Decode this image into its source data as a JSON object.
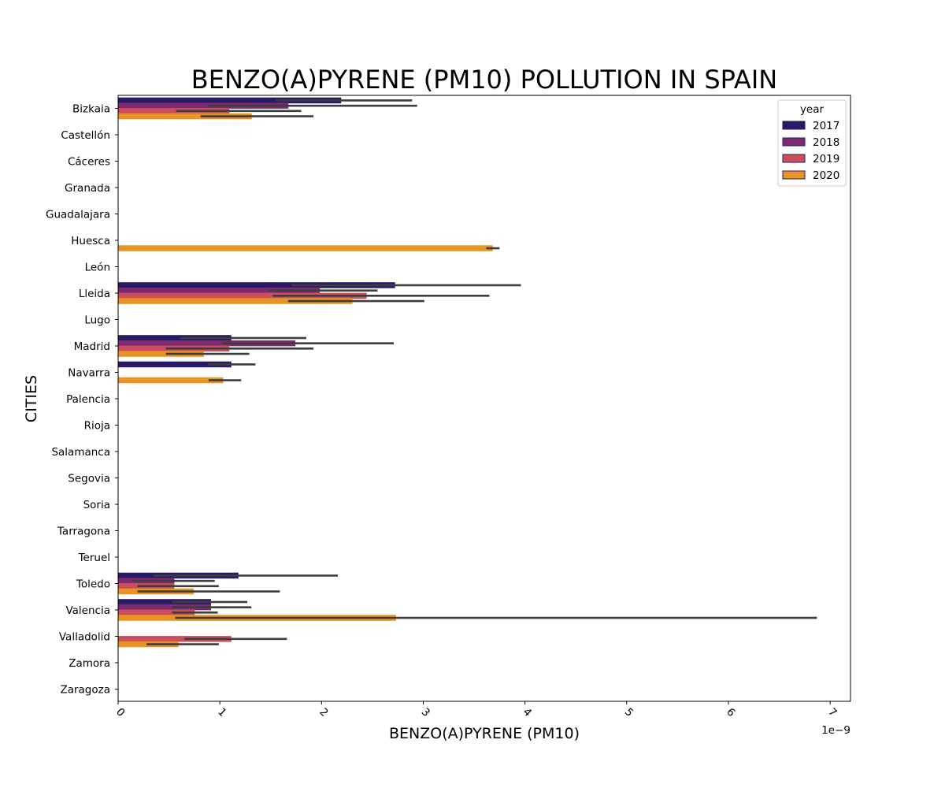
{
  "chart_data": {
    "type": "bar",
    "orientation": "horizontal",
    "title": "BENZO(A)PYRENE (PM10) POLLUTION IN SPAIN",
    "xlabel": "BENZO(A)PYRENE (PM10)",
    "ylabel": "CITIES",
    "x_offset_text": "1e−9",
    "xlim": [
      0,
      7.2
    ],
    "x_ticks": [
      0,
      1,
      2,
      3,
      4,
      5,
      6,
      7
    ],
    "x_tick_labels": [
      "0",
      "1",
      "2",
      "3",
      "4",
      "5",
      "6",
      "7"
    ],
    "grid": false,
    "legend": {
      "title": "year",
      "placement": "top-right"
    },
    "categories": [
      "Bizkaia",
      "Castellón",
      "Cáceres",
      "Granada",
      "Guadalajara",
      "Huesca",
      "León",
      "Lleida",
      "Lugo",
      "Madrid",
      "Navarra",
      "Palencia",
      "Rioja",
      "Salamanca",
      "Segovia",
      "Soria",
      "Tarragona",
      "Teruel",
      "Toledo",
      "Valencia",
      "Valladolid",
      "Zamora",
      "Zaragoza"
    ],
    "series": [
      {
        "name": "2017",
        "color": "#2a1a66",
        "values": [
          2.19,
          null,
          null,
          null,
          null,
          null,
          null,
          2.72,
          null,
          1.11,
          1.11,
          null,
          null,
          null,
          null,
          null,
          null,
          null,
          1.18,
          0.91,
          null,
          null,
          null
        ],
        "ci_low": [
          1.55,
          null,
          null,
          null,
          null,
          null,
          null,
          1.71,
          null,
          0.61,
          0.88,
          null,
          null,
          null,
          null,
          null,
          null,
          null,
          0.35,
          0.53,
          null,
          null,
          null
        ],
        "ci_high": [
          2.89,
          null,
          null,
          null,
          null,
          null,
          null,
          3.96,
          null,
          1.85,
          1.35,
          null,
          null,
          null,
          null,
          null,
          null,
          null,
          2.16,
          1.27,
          null,
          null,
          null
        ]
      },
      {
        "name": "2018",
        "color": "#7e2a72",
        "values": [
          1.67,
          null,
          null,
          null,
          null,
          null,
          null,
          1.98,
          null,
          1.74,
          null,
          null,
          null,
          null,
          null,
          null,
          null,
          null,
          0.55,
          0.91,
          null,
          null,
          null
        ],
        "ci_low": [
          0.88,
          null,
          null,
          null,
          null,
          null,
          null,
          1.48,
          null,
          1.02,
          null,
          null,
          null,
          null,
          null,
          null,
          null,
          null,
          0.14,
          0.53,
          null,
          null,
          null
        ],
        "ci_high": [
          2.94,
          null,
          null,
          null,
          null,
          null,
          null,
          2.55,
          null,
          2.71,
          null,
          null,
          null,
          null,
          null,
          null,
          null,
          null,
          0.95,
          1.31,
          null,
          null,
          null
        ]
      },
      {
        "name": "2019",
        "color": "#cc4e5a",
        "values": [
          1.09,
          null,
          null,
          null,
          null,
          null,
          null,
          2.44,
          null,
          1.09,
          null,
          null,
          null,
          null,
          null,
          null,
          null,
          null,
          0.55,
          0.75,
          1.11,
          null,
          null
        ],
        "ci_low": [
          0.57,
          null,
          null,
          null,
          null,
          null,
          null,
          1.52,
          null,
          0.47,
          null,
          null,
          null,
          null,
          null,
          null,
          null,
          null,
          0.19,
          0.53,
          0.65,
          null,
          null
        ],
        "ci_high": [
          1.8,
          null,
          null,
          null,
          null,
          null,
          null,
          3.65,
          null,
          1.92,
          null,
          null,
          null,
          null,
          null,
          null,
          null,
          null,
          0.99,
          0.98,
          1.66,
          null,
          null
        ]
      },
      {
        "name": "2020",
        "color": "#e89425",
        "values": [
          1.31,
          null,
          null,
          null,
          null,
          3.68,
          null,
          2.3,
          null,
          0.84,
          1.03,
          null,
          null,
          null,
          null,
          null,
          null,
          null,
          0.74,
          2.73,
          0.59,
          null,
          null
        ],
        "ci_low": [
          0.81,
          null,
          null,
          null,
          null,
          3.62,
          null,
          1.67,
          null,
          0.47,
          0.89,
          null,
          null,
          null,
          null,
          null,
          null,
          null,
          0.19,
          0.56,
          0.28,
          null,
          null
        ],
        "ci_high": [
          1.92,
          null,
          null,
          null,
          null,
          3.75,
          null,
          3.01,
          null,
          1.29,
          1.21,
          null,
          null,
          null,
          null,
          null,
          null,
          null,
          1.59,
          6.87,
          0.99,
          null,
          null
        ]
      }
    ]
  }
}
